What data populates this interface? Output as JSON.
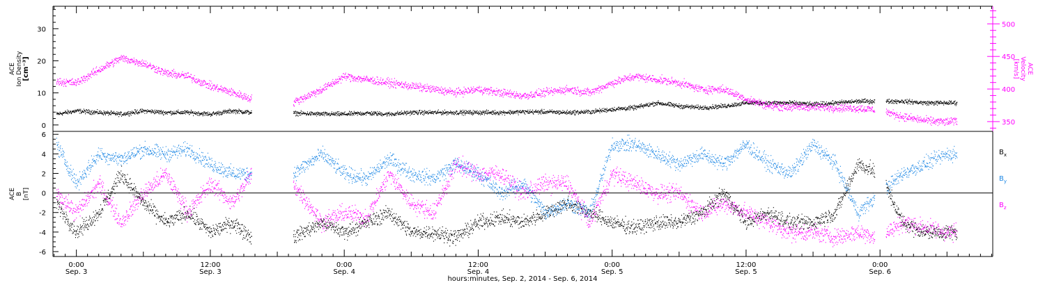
{
  "chart_data": [
    {
      "type": "scatter",
      "panel": "top",
      "ylabel": "ACE\nIon Density\n[cm⁻³]",
      "ylim": [
        -2,
        37
      ],
      "yticks": [
        0,
        10,
        20,
        30
      ],
      "right_ylabel": "ACE\nVelocity\n[km/s]",
      "right_ylim": [
        335,
        527
      ],
      "right_yticks": [
        350,
        400,
        450,
        500
      ],
      "grid": false,
      "series": [
        {
          "axis": "left",
          "color": "#000000",
          "x_hours": [
            -1.8,
            0,
            2,
            4,
            6,
            8,
            10,
            12,
            14,
            15.7,
            19.4,
            22,
            24,
            26,
            28,
            30,
            32,
            34,
            36,
            38,
            40,
            42,
            44,
            46,
            48,
            50,
            52,
            54,
            56,
            58,
            60,
            62,
            64,
            66,
            68,
            70,
            72,
            74,
            76,
            78,
            78.9
          ],
          "y": [
            3.5,
            4.5,
            4.0,
            3.5,
            4.5,
            4.0,
            4.0,
            3.5,
            4.5,
            4.0,
            3.8,
            3.5,
            3.5,
            3.8,
            3.5,
            4.0,
            4.0,
            4.0,
            4.0,
            4.0,
            4.2,
            4.2,
            4.0,
            4.2,
            5.0,
            5.5,
            7.0,
            6.0,
            5.5,
            6.0,
            7.0,
            7.0,
            7.0,
            6.5,
            7.0,
            7.5,
            7.5,
            7.5,
            7.0,
            7.0,
            7.0
          ]
        },
        {
          "axis": "right",
          "color": "#ff00ff",
          "x_hours": [
            -1.8,
            0,
            2,
            4,
            6,
            8,
            10,
            12,
            14,
            15.7,
            19.4,
            22,
            24,
            26,
            28,
            30,
            32,
            34,
            36,
            38,
            40,
            42,
            44,
            46,
            48,
            50,
            52,
            54,
            56,
            58,
            60,
            62,
            64,
            66,
            68,
            70,
            72,
            74,
            76,
            78,
            78.9
          ],
          "y": [
            412,
            410,
            430,
            448,
            440,
            425,
            420,
            405,
            395,
            385,
            380,
            400,
            420,
            415,
            410,
            405,
            400,
            395,
            400,
            395,
            390,
            395,
            400,
            395,
            410,
            420,
            415,
            410,
            400,
            400,
            385,
            375,
            373,
            373,
            372,
            371,
            368,
            358,
            352,
            350,
            352
          ]
        }
      ]
    },
    {
      "type": "scatter",
      "panel": "bottom",
      "ylabel": "ACE\nB\n[nT]",
      "ylim": [
        -6.5,
        6.3
      ],
      "yticks": [
        -6,
        -4,
        -2,
        0,
        2,
        4,
        6
      ],
      "grid": false,
      "zero_line": true,
      "series": [
        {
          "name": "B",
          "sub": "x",
          "color": "#000000",
          "x_hours": [
            -1.8,
            0,
            2,
            4,
            6,
            8,
            10,
            12,
            14,
            15.7,
            19.4,
            22,
            24,
            26,
            28,
            30,
            32,
            34,
            36,
            38,
            40,
            42,
            44,
            46,
            48,
            50,
            52,
            54,
            56,
            58,
            60,
            62,
            64,
            66,
            68,
            70,
            72,
            74,
            76,
            78,
            78.9
          ],
          "y": [
            -1,
            -4,
            -2,
            2,
            -1,
            -3,
            -2,
            -4,
            -3,
            -4.5,
            -4.5,
            -3,
            -4,
            -3,
            -2,
            -4,
            -4,
            -4.5,
            -3,
            -2.5,
            -3,
            -2,
            -1,
            -2,
            -3,
            -3.5,
            -3,
            -3,
            -2,
            0,
            -3,
            -2,
            -3,
            -3,
            -2,
            3,
            2,
            -3,
            -4,
            -4,
            -4
          ]
        },
        {
          "name": "B",
          "sub": "y",
          "color": "#1e88e5",
          "x_hours": [
            -1.8,
            0,
            2,
            4,
            6,
            8,
            10,
            12,
            14,
            15.7,
            19.4,
            22,
            24,
            26,
            28,
            30,
            32,
            34,
            36,
            38,
            40,
            42,
            44,
            46,
            48,
            50,
            52,
            54,
            56,
            58,
            60,
            62,
            64,
            66,
            68,
            70,
            72,
            74,
            76,
            78,
            78.9
          ],
          "y": [
            5,
            1,
            4,
            3.5,
            4.5,
            4,
            4.5,
            3,
            2,
            2,
            2,
            4,
            2,
            1.5,
            3.5,
            2,
            1.5,
            3,
            2,
            0,
            1,
            -2,
            -1,
            -2,
            5,
            5,
            4,
            3,
            4,
            3,
            5,
            3,
            2,
            5,
            3,
            -2,
            0,
            2,
            3,
            4,
            4
          ]
        },
        {
          "name": "B",
          "sub": "z",
          "color": "#ff00ff",
          "x_hours": [
            -1.8,
            0,
            2,
            4,
            6,
            8,
            10,
            12,
            14,
            15.7,
            19.4,
            22,
            24,
            26,
            28,
            30,
            32,
            34,
            36,
            38,
            40,
            42,
            44,
            46,
            48,
            50,
            52,
            54,
            56,
            58,
            60,
            62,
            64,
            66,
            68,
            70,
            72,
            74,
            76,
            78,
            78.9
          ],
          "y": [
            0,
            -2,
            1,
            -3,
            0,
            2,
            -2,
            1,
            -1,
            2,
            1,
            -3,
            -2,
            -2.5,
            2,
            -1,
            -2,
            3,
            2,
            2,
            0,
            1,
            1,
            -3,
            2,
            1,
            0,
            0,
            -2,
            -1,
            -2,
            -3,
            -4,
            -4,
            -4.5,
            -4,
            -4.5,
            -3,
            -3.5,
            -4,
            -4
          ]
        }
      ]
    }
  ],
  "x_axis": {
    "label": "hours:minutes, Sep.  2, 2014 - Sep.  6, 2014",
    "range_hours": [
      -2.1,
      82.1
    ],
    "ticks": [
      {
        "hours": 0,
        "time": "0:00",
        "date": "Sep. 3"
      },
      {
        "hours": 12,
        "time": "12:00",
        "date": "Sep. 3"
      },
      {
        "hours": 24,
        "time": "0:00",
        "date": "Sep. 4"
      },
      {
        "hours": 36,
        "time": "12:00",
        "date": "Sep. 4"
      },
      {
        "hours": 48,
        "time": "0:00",
        "date": "Sep. 5"
      },
      {
        "hours": 60,
        "time": "12:00",
        "date": "Sep. 5"
      },
      {
        "hours": 72,
        "time": "0:00",
        "date": "Sep. 6"
      }
    ]
  }
}
